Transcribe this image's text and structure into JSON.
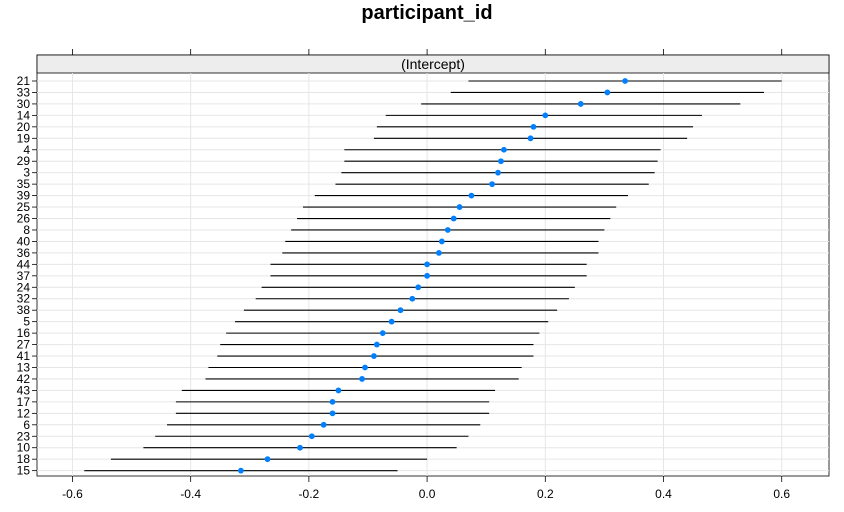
{
  "chart_data": {
    "type": "dotplot-intervals",
    "title": "participant_id",
    "panel_strip": "(Intercept)",
    "xlim": [
      -0.66,
      0.68
    ],
    "x_ticks": [
      -0.6,
      -0.4,
      -0.2,
      0.0,
      0.2,
      0.4,
      0.6
    ],
    "x_tick_labels": [
      "-0.6",
      "-0.4",
      "-0.2",
      "0.0",
      "0.2",
      "0.4",
      "0.6"
    ],
    "grid": true,
    "point_color": "#0080ff",
    "points": [
      {
        "id": "21",
        "estimate": 0.335,
        "lower": 0.07,
        "upper": 0.6
      },
      {
        "id": "33",
        "estimate": 0.305,
        "lower": 0.04,
        "upper": 0.57
      },
      {
        "id": "30",
        "estimate": 0.26,
        "lower": -0.01,
        "upper": 0.53
      },
      {
        "id": "14",
        "estimate": 0.2,
        "lower": -0.07,
        "upper": 0.465
      },
      {
        "id": "20",
        "estimate": 0.18,
        "lower": -0.085,
        "upper": 0.45
      },
      {
        "id": "19",
        "estimate": 0.175,
        "lower": -0.09,
        "upper": 0.44
      },
      {
        "id": "4",
        "estimate": 0.13,
        "lower": -0.14,
        "upper": 0.395
      },
      {
        "id": "29",
        "estimate": 0.125,
        "lower": -0.14,
        "upper": 0.39
      },
      {
        "id": "3",
        "estimate": 0.12,
        "lower": -0.145,
        "upper": 0.385
      },
      {
        "id": "35",
        "estimate": 0.11,
        "lower": -0.155,
        "upper": 0.375
      },
      {
        "id": "39",
        "estimate": 0.075,
        "lower": -0.19,
        "upper": 0.34
      },
      {
        "id": "25",
        "estimate": 0.055,
        "lower": -0.21,
        "upper": 0.32
      },
      {
        "id": "26",
        "estimate": 0.045,
        "lower": -0.22,
        "upper": 0.31
      },
      {
        "id": "8",
        "estimate": 0.035,
        "lower": -0.23,
        "upper": 0.3
      },
      {
        "id": "40",
        "estimate": 0.025,
        "lower": -0.24,
        "upper": 0.29
      },
      {
        "id": "36",
        "estimate": 0.02,
        "lower": -0.245,
        "upper": 0.29
      },
      {
        "id": "44",
        "estimate": 0.0,
        "lower": -0.265,
        "upper": 0.27
      },
      {
        "id": "37",
        "estimate": 0.0,
        "lower": -0.265,
        "upper": 0.27
      },
      {
        "id": "24",
        "estimate": -0.015,
        "lower": -0.28,
        "upper": 0.25
      },
      {
        "id": "32",
        "estimate": -0.025,
        "lower": -0.29,
        "upper": 0.24
      },
      {
        "id": "38",
        "estimate": -0.045,
        "lower": -0.31,
        "upper": 0.22
      },
      {
        "id": "5",
        "estimate": -0.06,
        "lower": -0.325,
        "upper": 0.205
      },
      {
        "id": "16",
        "estimate": -0.075,
        "lower": -0.34,
        "upper": 0.19
      },
      {
        "id": "27",
        "estimate": -0.085,
        "lower": -0.35,
        "upper": 0.18
      },
      {
        "id": "41",
        "estimate": -0.09,
        "lower": -0.355,
        "upper": 0.18
      },
      {
        "id": "13",
        "estimate": -0.105,
        "lower": -0.37,
        "upper": 0.16
      },
      {
        "id": "42",
        "estimate": -0.11,
        "lower": -0.375,
        "upper": 0.155
      },
      {
        "id": "43",
        "estimate": -0.15,
        "lower": -0.415,
        "upper": 0.115
      },
      {
        "id": "17",
        "estimate": -0.16,
        "lower": -0.425,
        "upper": 0.105
      },
      {
        "id": "12",
        "estimate": -0.16,
        "lower": -0.425,
        "upper": 0.105
      },
      {
        "id": "6",
        "estimate": -0.175,
        "lower": -0.44,
        "upper": 0.09
      },
      {
        "id": "23",
        "estimate": -0.195,
        "lower": -0.46,
        "upper": 0.07
      },
      {
        "id": "10",
        "estimate": -0.215,
        "lower": -0.48,
        "upper": 0.05
      },
      {
        "id": "18",
        "estimate": -0.27,
        "lower": -0.535,
        "upper": 0.0
      },
      {
        "id": "15",
        "estimate": -0.315,
        "lower": -0.58,
        "upper": -0.05
      }
    ]
  }
}
